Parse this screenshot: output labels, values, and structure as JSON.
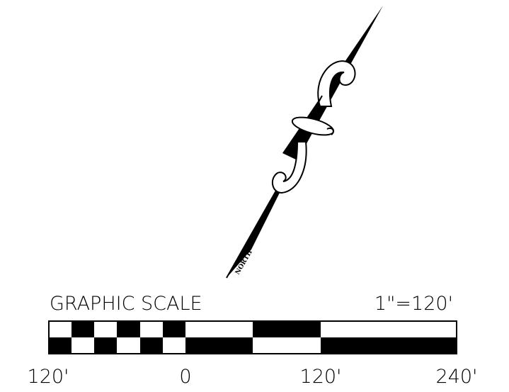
{
  "north_arrow": {
    "label": "NORTH"
  },
  "scale": {
    "title": "GRAPHIC SCALE",
    "ratio": "1\"=120'",
    "labels": [
      "120'",
      "0",
      "120'",
      "240'"
    ]
  }
}
